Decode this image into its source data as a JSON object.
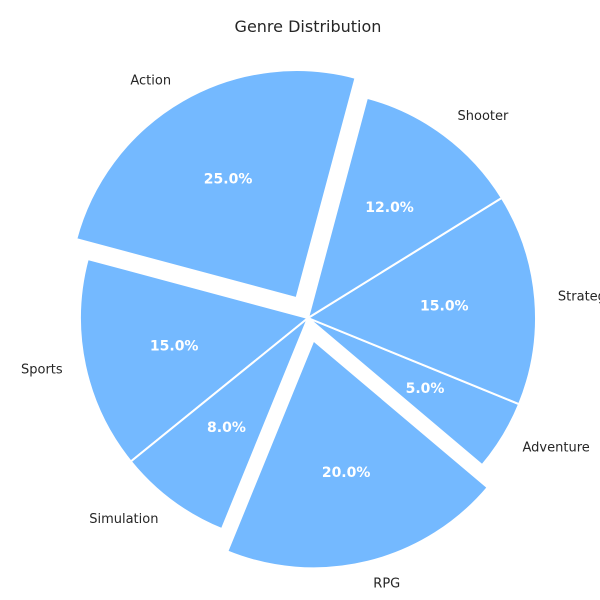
{
  "chart_data": {
    "type": "pie",
    "title": "Genre Distribution",
    "slice_color": "#74b9ff",
    "start_angle_deg": 75,
    "direction": "counterclockwise",
    "slices": [
      {
        "label": "Action",
        "value": 25.0,
        "pct_label": "25.0%",
        "exploded": true
      },
      {
        "label": "Sports",
        "value": 15.0,
        "pct_label": "15.0%",
        "exploded": false
      },
      {
        "label": "Simulation",
        "value": 8.0,
        "pct_label": "8.0%",
        "exploded": false
      },
      {
        "label": "RPG",
        "value": 20.0,
        "pct_label": "20.0%",
        "exploded": true
      },
      {
        "label": "Adventure",
        "value": 5.0,
        "pct_label": "5.0%",
        "exploded": false
      },
      {
        "label": "Strategy",
        "value": 15.0,
        "pct_label": "15.0%",
        "exploded": false
      },
      {
        "label": "Shooter",
        "value": 12.0,
        "pct_label": "12.0%",
        "exploded": false
      }
    ]
  }
}
